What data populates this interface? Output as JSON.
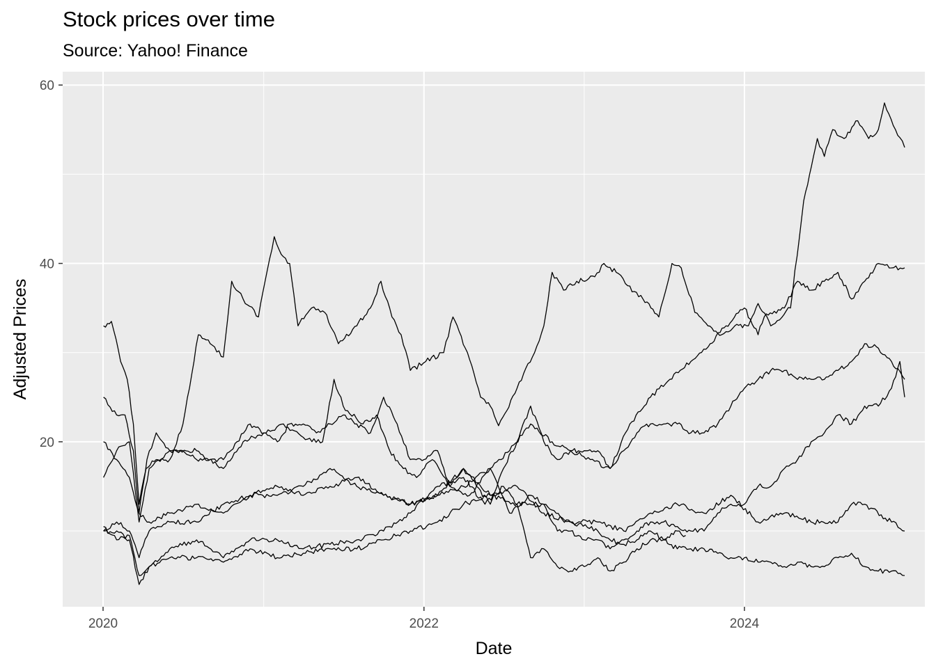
{
  "chart_data": {
    "type": "line",
    "title": "Stock prices over time",
    "subtitle": "Source: Yahoo! Finance",
    "xlabel": "Date",
    "ylabel": "Adjusted Prices",
    "x_ticks": [
      "2020",
      "2022",
      "2024"
    ],
    "y_ticks": [
      20,
      40,
      60
    ],
    "xlim": [
      "2019-10-01",
      "2025-02-15"
    ],
    "ylim": [
      1.5,
      61.5
    ],
    "grid": true,
    "line_color": "#000000",
    "panel_color": "#ebebeb",
    "series": [
      {
        "x": [
          "2020-01-02",
          "2020-01-20",
          "2020-02-10",
          "2020-02-25",
          "2020-03-10",
          "2020-03-23",
          "2020-04-08",
          "2020-05-01",
          "2020-06-01",
          "2020-07-01",
          "2020-08-05",
          "2020-09-01",
          "2020-10-01",
          "2020-10-20",
          "2020-11-15",
          "2020-12-20",
          "2021-01-04",
          "2021-01-25",
          "2021-02-10",
          "2021-03-01",
          "2021-03-20",
          "2021-04-20",
          "2021-05-20",
          "2021-06-20",
          "2021-08-01",
          "2021-09-01",
          "2021-09-25",
          "2021-10-20",
          "2021-11-10",
          "2021-12-01",
          "2022-01-05",
          "2022-02-15",
          "2022-03-08",
          "2022-04-10",
          "2022-05-10",
          "2022-06-01",
          "2022-06-20",
          "2022-08-01",
          "2022-09-10",
          "2022-10-01",
          "2022-10-20",
          "2022-11-15",
          "2022-12-15",
          "2023-01-25",
          "2023-02-15",
          "2023-03-15",
          "2023-04-10",
          "2023-05-15",
          "2023-06-20",
          "2023-07-20",
          "2023-08-10",
          "2023-09-10",
          "2023-10-10",
          "2023-11-10",
          "2023-12-10",
          "2024-01-10",
          "2024-02-01",
          "2024-03-01",
          "2024-04-15",
          "2024-05-15",
          "2024-06-15",
          "2024-07-01",
          "2024-07-20",
          "2024-08-15",
          "2024-09-15",
          "2024-10-10",
          "2024-11-01",
          "2024-11-15",
          "2024-12-10",
          "2024-12-31"
        ],
        "y": [
          33,
          33.5,
          29,
          27,
          22,
          13,
          17,
          18,
          18,
          22,
          32,
          31,
          29.5,
          38,
          36,
          34,
          38,
          43,
          41,
          40,
          33,
          35,
          34.5,
          31,
          33,
          35,
          38,
          34,
          32,
          28,
          29,
          30,
          34,
          30,
          25,
          24,
          21.8,
          26,
          30,
          33,
          39,
          37,
          38,
          38.5,
          40,
          39,
          37.5,
          36,
          34,
          40,
          39.5,
          34.5,
          33,
          32,
          33,
          33,
          35.5,
          33,
          35,
          47,
          54,
          52,
          55,
          54,
          56,
          54,
          55,
          58,
          55,
          53
        ]
      },
      {
        "x": [
          "2020-01-02",
          "2020-02-01",
          "2020-03-01",
          "2020-03-23",
          "2020-04-15",
          "2020-06-01",
          "2020-08-01",
          "2020-10-01",
          "2020-11-15",
          "2021-01-01",
          "2021-02-15",
          "2021-04-01",
          "2021-05-15",
          "2021-06-10",
          "2021-07-01",
          "2021-08-15",
          "2021-09-15",
          "2021-10-15",
          "2021-11-15",
          "2021-12-15",
          "2022-01-20",
          "2022-03-01",
          "2022-04-15",
          "2022-06-01",
          "2022-07-15",
          "2022-09-01",
          "2022-10-20",
          "2022-12-01",
          "2023-01-15",
          "2023-03-01",
          "2023-04-15",
          "2023-06-01",
          "2023-07-15",
          "2023-09-01",
          "2023-10-15",
          "2023-11-20",
          "2024-01-01",
          "2024-02-01",
          "2024-02-15",
          "2024-04-01",
          "2024-05-01",
          "2024-06-01",
          "2024-07-01",
          "2024-08-01",
          "2024-09-01",
          "2024-10-01",
          "2024-11-01",
          "2024-12-01",
          "2024-12-31"
        ],
        "y": [
          16,
          19,
          20,
          11,
          17,
          19,
          19,
          17,
          20,
          21,
          22,
          20.5,
          20,
          27,
          24,
          22,
          23,
          19,
          17,
          16,
          18,
          15,
          14,
          17,
          19,
          22,
          20,
          19,
          18,
          17,
          22,
          25,
          27,
          29,
          31,
          33,
          35,
          32,
          34,
          35,
          38,
          37,
          38,
          39,
          36,
          38,
          40,
          39.5,
          39.5
        ]
      },
      {
        "x": [
          "2020-01-02",
          "2020-02-01",
          "2020-02-20",
          "2020-03-10",
          "2020-03-23",
          "2020-04-10",
          "2020-05-01",
          "2020-06-01",
          "2020-07-01",
          "2020-08-01",
          "2020-09-01",
          "2020-10-01",
          "2020-11-01",
          "2020-12-01",
          "2021-01-01",
          "2021-02-01",
          "2021-03-01",
          "2021-04-01",
          "2021-05-01",
          "2021-06-01",
          "2021-07-01",
          "2021-08-01",
          "2021-09-01",
          "2021-10-01",
          "2021-11-01",
          "2021-12-01",
          "2022-01-01",
          "2022-02-01",
          "2022-03-01",
          "2022-04-01",
          "2022-05-01",
          "2022-06-01",
          "2022-07-01",
          "2022-08-01",
          "2022-09-01",
          "2022-10-01",
          "2022-11-01",
          "2022-12-01",
          "2023-01-01",
          "2023-02-01",
          "2023-03-01",
          "2023-04-01",
          "2023-05-01",
          "2023-06-01",
          "2023-07-01",
          "2023-08-01",
          "2023-09-01",
          "2023-10-01",
          "2023-11-01",
          "2023-12-01",
          "2024-01-01",
          "2024-02-01",
          "2024-03-01",
          "2024-04-01",
          "2024-05-01",
          "2024-06-01",
          "2024-07-01",
          "2024-08-01",
          "2024-09-01",
          "2024-10-01",
          "2024-11-01",
          "2024-12-01",
          "2024-12-31"
        ],
        "y": [
          25,
          23,
          23,
          19,
          12,
          18,
          21,
          19,
          19,
          18,
          18,
          18,
          20,
          22,
          21,
          20,
          22,
          22,
          21,
          22,
          23,
          22,
          21,
          25,
          22,
          18,
          18,
          19,
          15,
          17,
          15,
          13,
          17,
          20,
          24,
          20,
          18,
          19,
          19,
          19,
          17,
          19,
          21,
          22,
          22,
          22,
          21,
          21,
          22,
          24,
          26,
          27,
          28,
          28,
          27,
          27,
          27,
          28,
          29,
          31,
          30.5,
          29,
          27
        ]
      },
      {
        "x": [
          "2020-01-02",
          "2020-02-01",
          "2020-03-01",
          "2020-03-23",
          "2020-04-15",
          "2020-06-01",
          "2020-08-01",
          "2020-10-01",
          "2020-12-01",
          "2021-02-01",
          "2021-04-01",
          "2021-06-01",
          "2021-08-01",
          "2021-10-01",
          "2021-12-01",
          "2022-02-01",
          "2022-04-01",
          "2022-06-01",
          "2022-07-15",
          "2022-09-01",
          "2022-10-01",
          "2022-11-01",
          "2022-12-01",
          "2023-01-01",
          "2023-02-01",
          "2023-03-01",
          "2023-04-01",
          "2023-05-01",
          "2023-06-01",
          "2023-07-01",
          "2023-08-01",
          "2023-09-01",
          "2023-10-01",
          "2023-11-01",
          "2023-12-01",
          "2024-01-01",
          "2024-02-01",
          "2024-03-01",
          "2024-04-01",
          "2024-05-01",
          "2024-06-01",
          "2024-07-01",
          "2024-08-01",
          "2024-09-01",
          "2024-10-01",
          "2024-11-01",
          "2024-12-01",
          "2024-12-20",
          "2024-12-31"
        ],
        "y": [
          20,
          18,
          16,
          12,
          11,
          12,
          13,
          12,
          14,
          15,
          14,
          15,
          16,
          14,
          13,
          14,
          15,
          17,
          12,
          14,
          13,
          10,
          10,
          9,
          9,
          8,
          9,
          10,
          11,
          11,
          10.5,
          10,
          10,
          12,
          13,
          13,
          15,
          15,
          17,
          18,
          20,
          21,
          23,
          22,
          24,
          24,
          26,
          29,
          25
        ]
      },
      {
        "x": [
          "2020-01-02",
          "2020-02-01",
          "2020-03-01",
          "2020-03-23",
          "2020-04-15",
          "2020-06-01",
          "2020-08-01",
          "2020-10-01",
          "2020-12-01",
          "2021-02-01",
          "2021-04-01",
          "2021-06-01",
          "2021-08-01",
          "2021-10-01",
          "2021-12-01",
          "2022-02-01",
          "2022-04-01",
          "2022-06-01",
          "2022-08-01",
          "2022-10-01",
          "2022-12-01",
          "2023-02-01",
          "2023-04-01",
          "2023-06-01",
          "2023-08-01",
          "2023-10-01",
          "2023-12-01",
          "2024-02-01",
          "2024-04-01",
          "2024-06-01",
          "2024-08-01",
          "2024-09-01",
          "2024-10-01",
          "2024-12-01",
          "2024-12-31"
        ],
        "y": [
          10,
          11,
          10,
          7,
          10,
          11,
          11,
          13,
          14,
          14,
          15,
          17,
          15,
          14,
          13,
          14,
          17,
          14,
          15,
          12,
          11,
          11,
          10,
          12,
          13,
          12,
          14,
          11,
          12,
          11,
          11,
          13,
          13,
          11,
          10
        ]
      },
      {
        "x": [
          "2020-01-02",
          "2020-02-01",
          "2020-03-01",
          "2020-03-23",
          "2020-04-15",
          "2020-06-01",
          "2020-08-01",
          "2020-10-01",
          "2020-12-01",
          "2021-02-01",
          "2021-04-01",
          "2021-06-01",
          "2021-08-01",
          "2021-10-01",
          "2021-12-01",
          "2022-02-01",
          "2022-04-01",
          "2022-05-20",
          "2022-07-01",
          "2022-08-01",
          "2022-09-01",
          "2022-10-01",
          "2022-11-01",
          "2022-12-01",
          "2023-01-01",
          "2023-02-01",
          "2023-03-01",
          "2023-04-01",
          "2023-05-01",
          "2023-06-01",
          "2023-07-01",
          "2023-08-01",
          "2023-09-01",
          "2023-10-01",
          "2023-11-01",
          "2023-12-01",
          "2024-01-01",
          "2024-02-01",
          "2024-03-01",
          "2024-04-01",
          "2024-05-01",
          "2024-06-01",
          "2024-07-01",
          "2024-08-01",
          "2024-09-01",
          "2024-10-01",
          "2024-11-01",
          "2024-12-01",
          "2024-12-31"
        ],
        "y": [
          10.5,
          9,
          9.5,
          5,
          6,
          8,
          9,
          7,
          9,
          9,
          8,
          8.5,
          9,
          10,
          12,
          15,
          16,
          13,
          15,
          13,
          7,
          8,
          6,
          5.5,
          6,
          7,
          5.5,
          6.5,
          8,
          9,
          9,
          8,
          8,
          8,
          7.5,
          7,
          7,
          6.5,
          6.5,
          6,
          6.5,
          6,
          6,
          7,
          7.5,
          6,
          5.5,
          5.5,
          5
        ]
      },
      {
        "x": [
          "2020-01-02",
          "2020-02-01",
          "2020-03-01",
          "2020-03-23",
          "2020-04-15",
          "2020-06-01",
          "2020-08-01",
          "2020-10-01",
          "2020-12-01",
          "2021-02-01",
          "2021-04-01",
          "2021-06-01",
          "2021-08-01",
          "2021-10-01",
          "2021-12-01",
          "2022-02-01",
          "2022-04-01",
          "2022-06-01",
          "2022-08-01",
          "2022-10-01",
          "2022-12-01",
          "2023-02-01",
          "2023-03-01",
          "2023-04-01",
          "2023-05-01",
          "2023-06-01",
          "2023-07-01",
          "2023-08-01",
          "2023-08-20"
        ],
        "y": [
          10,
          10,
          9,
          4,
          6,
          7,
          7,
          6.5,
          8,
          7,
          7.5,
          8,
          8,
          9,
          10,
          11,
          13,
          14,
          13,
          13,
          11,
          10,
          9,
          8.5,
          9,
          10,
          9,
          10,
          9.5
        ]
      }
    ]
  }
}
